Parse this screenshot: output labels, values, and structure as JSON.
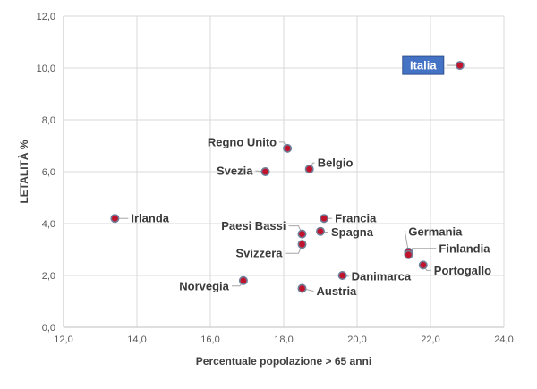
{
  "chart_data": {
    "type": "scatter",
    "xlabel": "Percentuale popolazione > 65 anni",
    "ylabel": "LETALITÀ %",
    "xlim": [
      12,
      24
    ],
    "ylim": [
      0,
      12
    ],
    "x_ticks": [
      "12,0",
      "14,0",
      "16,0",
      "18,0",
      "20,0",
      "22,0",
      "24,0"
    ],
    "y_ticks": [
      "0,0",
      "2,0",
      "4,0",
      "6,0",
      "8,0",
      "10,0",
      "12,0"
    ],
    "grid": true,
    "highlight": "Italia",
    "points": [
      {
        "label": "Italia",
        "x": 22.8,
        "y": 10.1
      },
      {
        "label": "Regno Unito",
        "x": 18.1,
        "y": 6.9
      },
      {
        "label": "Belgio",
        "x": 18.7,
        "y": 6.1
      },
      {
        "label": "Svezia",
        "x": 17.5,
        "y": 6.0
      },
      {
        "label": "Irlanda",
        "x": 13.4,
        "y": 4.2
      },
      {
        "label": "Francia",
        "x": 19.1,
        "y": 4.2
      },
      {
        "label": "Paesi Bassi",
        "x": 18.5,
        "y": 3.6
      },
      {
        "label": "Spagna",
        "x": 19.0,
        "y": 3.7
      },
      {
        "label": "Svizzera",
        "x": 18.5,
        "y": 3.2
      },
      {
        "label": "Germania",
        "x": 21.4,
        "y": 2.9
      },
      {
        "label": "Finlandia",
        "x": 21.4,
        "y": 2.8
      },
      {
        "label": "Portogallo",
        "x": 21.8,
        "y": 2.4
      },
      {
        "label": "Danimarca",
        "x": 19.6,
        "y": 2.0
      },
      {
        "label": "Norvegia",
        "x": 16.9,
        "y": 1.8
      },
      {
        "label": "Austria",
        "x": 18.5,
        "y": 1.5
      }
    ]
  }
}
